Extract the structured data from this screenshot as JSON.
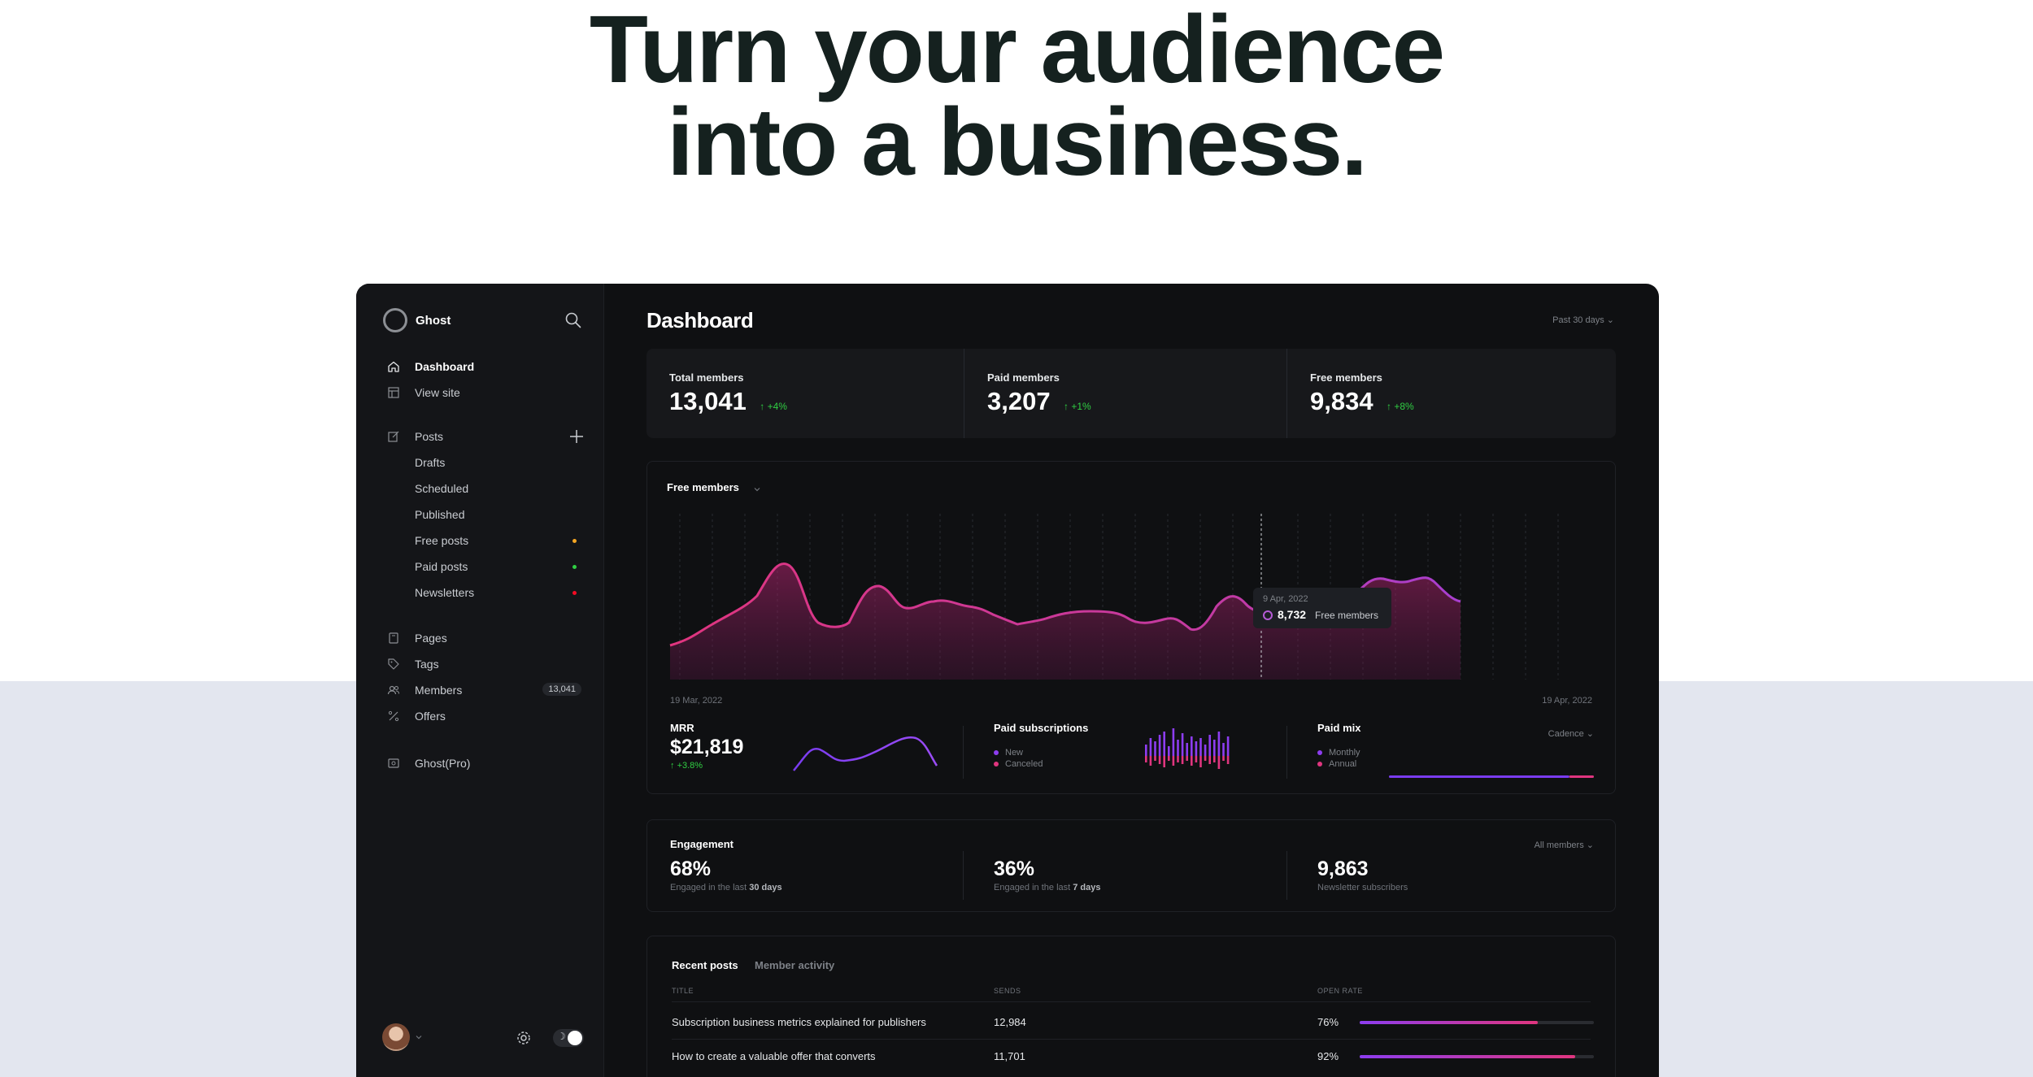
{
  "hero": {
    "line1": "Turn your audience",
    "line2": "into a business."
  },
  "sidebar": {
    "brand": "Ghost",
    "nav_main": [
      {
        "label": "Dashboard",
        "icon": "home-icon",
        "active": true
      },
      {
        "label": "View site",
        "icon": "layout-icon",
        "active": false
      }
    ],
    "posts": {
      "label": "Posts",
      "icon": "edit-icon"
    },
    "posts_sub": [
      {
        "label": "Drafts"
      },
      {
        "label": "Scheduled"
      },
      {
        "label": "Published"
      },
      {
        "label": "Free posts",
        "dot": "#f5a623"
      },
      {
        "label": "Paid posts",
        "dot": "#30cf43"
      },
      {
        "label": "Newsletters",
        "dot": "#f50b23"
      }
    ],
    "nav_content": [
      {
        "label": "Pages",
        "icon": "page-icon"
      },
      {
        "label": "Tags",
        "icon": "tag-icon"
      },
      {
        "label": "Members",
        "icon": "members-icon",
        "badge": "13,041"
      },
      {
        "label": "Offers",
        "icon": "percent-icon"
      }
    ],
    "pro": {
      "label": "Ghost(Pro)",
      "icon": "ghost-pro-icon"
    }
  },
  "dashboard": {
    "title": "Dashboard",
    "range": "Past 30 days",
    "stats": [
      {
        "label": "Total members",
        "value": "13,041",
        "delta": "+4%"
      },
      {
        "label": "Paid members",
        "value": "3,207",
        "delta": "+1%"
      },
      {
        "label": "Free members",
        "value": "9,834",
        "delta": "+8%"
      }
    ],
    "chart": {
      "title": "Free members",
      "date_start": "19 Mar, 2022",
      "date_end": "19 Apr, 2022",
      "tooltip_date": "9 Apr, 2022",
      "tooltip_value": "8,732",
      "tooltip_label": "Free members"
    },
    "mrr": {
      "title": "MRR",
      "value": "$21,819",
      "delta": "+3.8%"
    },
    "paid_subs": {
      "title": "Paid subscriptions",
      "legend_new": "New",
      "legend_canceled": "Canceled"
    },
    "paid_mix": {
      "title": "Paid mix",
      "filter": "Cadence",
      "legend_monthly": "Monthly",
      "legend_annual": "Annual",
      "monthly_share": 0.88
    },
    "engagement": {
      "title": "Engagement",
      "filter": "All members",
      "items": [
        {
          "value": "68%",
          "sub_prefix": "Engaged in the last ",
          "sub_bold": "30 days"
        },
        {
          "value": "36%",
          "sub_prefix": "Engaged in the last ",
          "sub_bold": "7 days"
        },
        {
          "value": "9,863",
          "sub_prefix": "Newsletter subscribers",
          "sub_bold": ""
        }
      ]
    },
    "posts": {
      "tab_active": "Recent posts",
      "tab_inactive": "Member activity",
      "col_title": "TITLE",
      "col_sends": "SENDS",
      "col_open": "OPEN RATE",
      "rows": [
        {
          "title": "Subscription business metrics explained for publishers",
          "sends": "12,984",
          "open_rate": "76%",
          "open_fraction": 0.76
        },
        {
          "title": "How to create a valuable offer that converts",
          "sends": "11,701",
          "open_rate": "92%",
          "open_fraction": 0.92
        }
      ]
    }
  }
}
